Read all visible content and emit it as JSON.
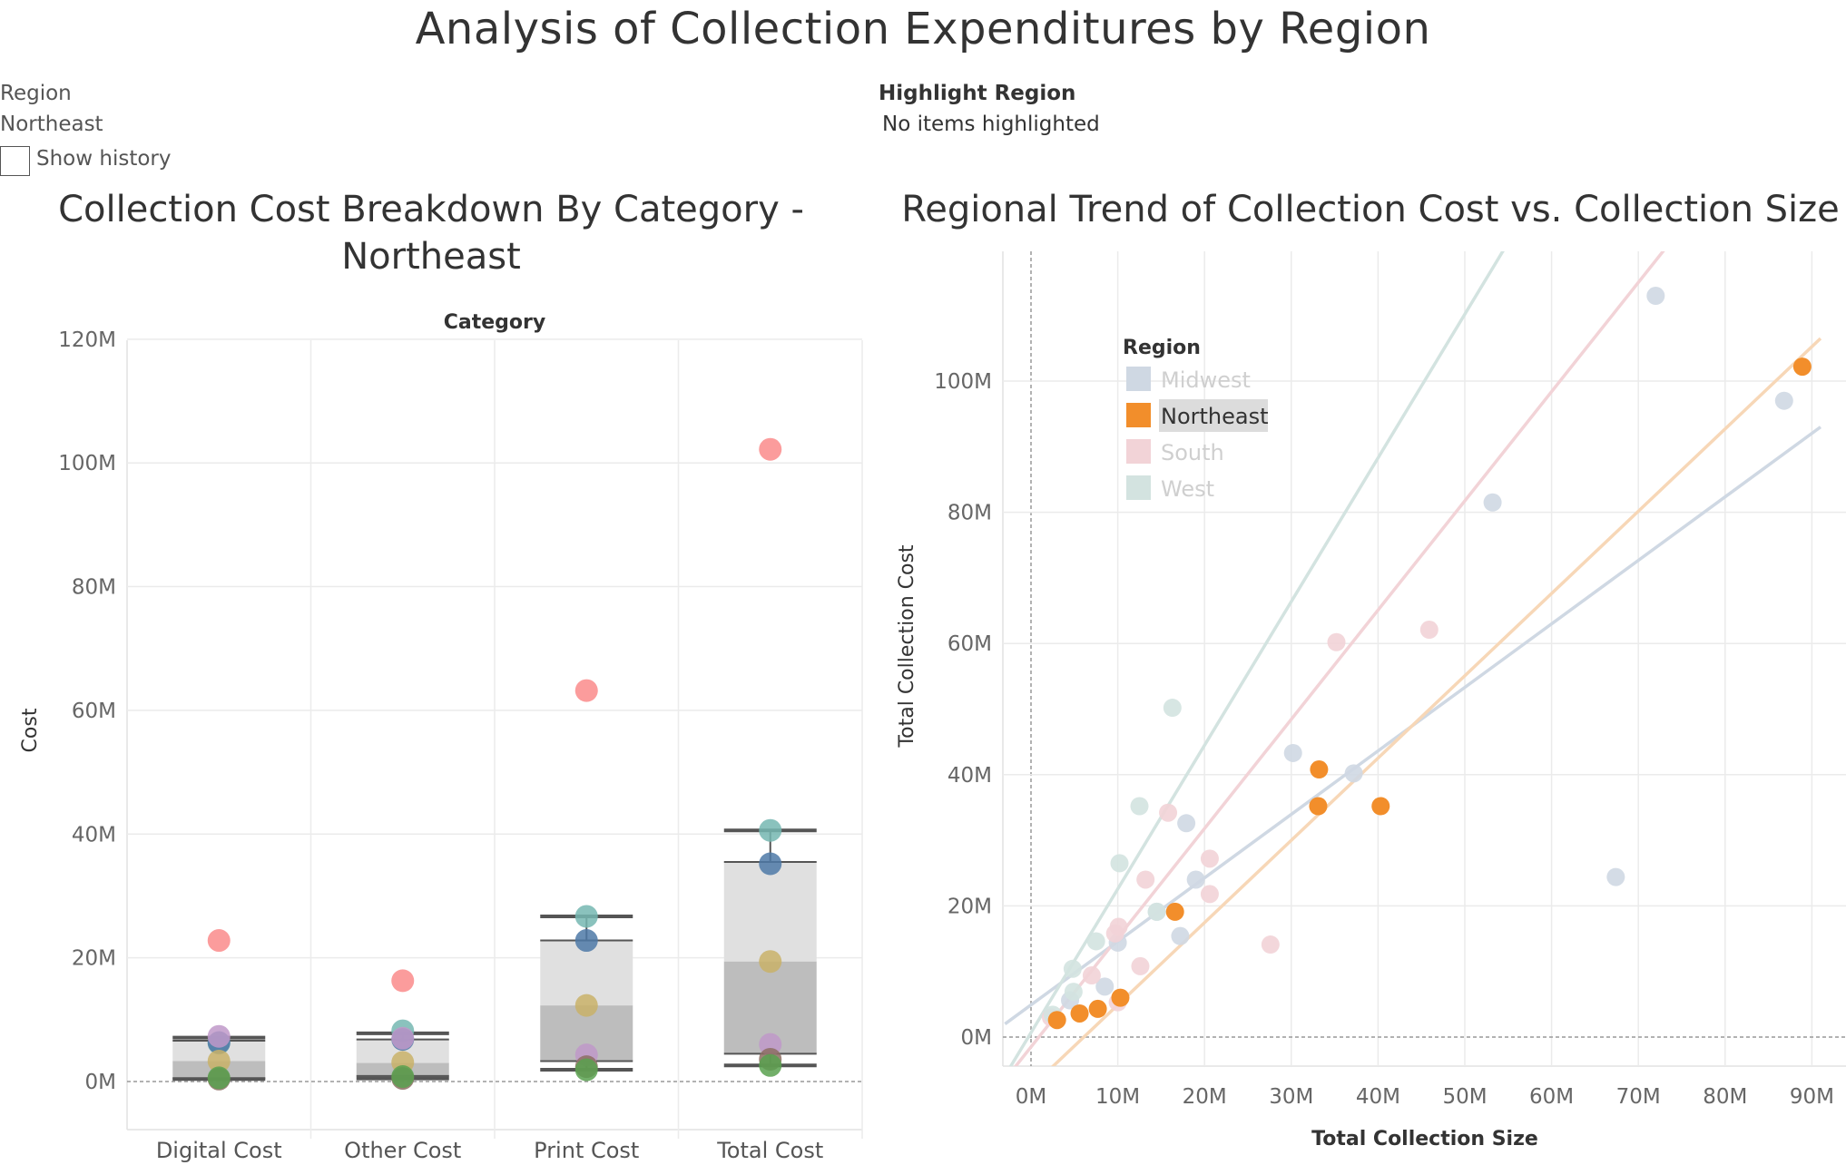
{
  "page": {
    "title": "Analysis of Collection Expenditures by Region"
  },
  "filters": {
    "region_label": "Region",
    "region_value": "Northeast",
    "show_history_label": "Show history",
    "show_history_checked": false,
    "highlight_title": "Highlight Region",
    "highlight_value": "No items highlighted"
  },
  "chart_data": [
    {
      "type": "scatter",
      "title": "Collection Cost Breakdown By Category - Northeast",
      "column_header": "Category",
      "ylabel": "Cost",
      "categories": [
        "Digital Cost",
        "Other Cost",
        "Print Cost",
        "Total Cost"
      ],
      "ylim": [
        -8,
        120
      ],
      "yticks": [
        0,
        20,
        40,
        60,
        80,
        100,
        120
      ],
      "ytick_labels": [
        "0M",
        "20M",
        "40M",
        "60M",
        "80M",
        "100M",
        "120M"
      ],
      "grid": true,
      "box_plots": [
        {
          "category": "Digital Cost",
          "whisker_low": 0.4,
          "q1": 0.5,
          "median": 3.3,
          "q3": 6.6,
          "whisker_high": 7.1
        },
        {
          "category": "Other Cost",
          "whisker_low": 0.5,
          "q1": 0.9,
          "median": 3.0,
          "q3": 6.8,
          "whisker_high": 7.8
        },
        {
          "category": "Print Cost",
          "whisker_low": 1.9,
          "q1": 3.3,
          "median": 12.3,
          "q3": 22.8,
          "whisker_high": 26.7
        },
        {
          "category": "Total Cost",
          "whisker_low": 2.6,
          "q1": 4.5,
          "median": 19.4,
          "q3": 35.5,
          "whisker_high": 40.6
        }
      ],
      "series": [
        {
          "color": "#fa8b8b",
          "values": [
            22.8,
            16.3,
            63.2,
            102.2
          ]
        },
        {
          "color": "#76b7b2",
          "values": [
            6.2,
            8.2,
            26.7,
            40.6
          ]
        },
        {
          "color": "#4e79a7",
          "values": [
            6.3,
            6.8,
            22.8,
            35.2
          ]
        },
        {
          "color": "#c9b268",
          "values": [
            3.3,
            3.1,
            12.3,
            19.4
          ]
        },
        {
          "color": "#bf99c9",
          "values": [
            7.3,
            7.0,
            4.3,
            6.0
          ]
        },
        {
          "color": "#8c6d62",
          "values": [
            0.4,
            0.5,
            2.4,
            3.6
          ]
        },
        {
          "color": "#59a14f",
          "values": [
            0.6,
            0.8,
            1.9,
            2.6
          ]
        }
      ]
    },
    {
      "type": "scatter",
      "title": "Regional Trend of Collection Cost vs. Collection Size",
      "xlabel": "Total Collection Size",
      "ylabel": "Total Collection Cost",
      "xlim": [
        -3,
        91
      ],
      "ylim": [
        -5,
        120
      ],
      "xticks": [
        0,
        10,
        20,
        30,
        40,
        50,
        60,
        70,
        80,
        90
      ],
      "xtick_labels": [
        "0M",
        "10M",
        "20M",
        "30M",
        "40M",
        "50M",
        "60M",
        "70M",
        "80M",
        "90M"
      ],
      "yticks": [
        0,
        20,
        40,
        60,
        80,
        100
      ],
      "ytick_labels": [
        "0M",
        "20M",
        "40M",
        "60M",
        "80M",
        "100M"
      ],
      "grid": true,
      "legend": {
        "title": "Region",
        "position": "top-left",
        "highlighted": "Northeast",
        "items": [
          {
            "label": "Midwest",
            "color": "#cfd8e3"
          },
          {
            "label": "Northeast",
            "color": "#f28e2b"
          },
          {
            "label": "South",
            "color": "#f2d3d7"
          },
          {
            "label": "West",
            "color": "#d3e3e0"
          }
        ]
      },
      "series": [
        {
          "name": "Midwest",
          "color": "#cfd8e3",
          "points": [
            [
              72,
              113
            ],
            [
              53.2,
              81.5
            ],
            [
              86.8,
              97
            ],
            [
              30.2,
              43.3
            ],
            [
              37.2,
              40.2
            ],
            [
              17.9,
              32.6
            ],
            [
              67.4,
              24.4
            ],
            [
              19,
              24
            ],
            [
              10,
              14.4
            ],
            [
              17.2,
              15.4
            ],
            [
              4.5,
              5.6
            ],
            [
              8.5,
              7.7
            ],
            [
              14.5,
              19.1
            ]
          ]
        },
        {
          "name": "Northeast",
          "color": "#f28e2b",
          "points": [
            [
              88.9,
              102.2
            ],
            [
              33.2,
              40.8
            ],
            [
              33.1,
              35.2
            ],
            [
              40.3,
              35.2
            ],
            [
              16.6,
              19.1
            ],
            [
              10.3,
              6
            ],
            [
              7.7,
              4.3
            ],
            [
              5.6,
              3.6
            ],
            [
              3,
              2.6
            ]
          ]
        },
        {
          "name": "South",
          "color": "#f2d3d7",
          "points": [
            [
              35.2,
              60.2
            ],
            [
              45.9,
              62.1
            ],
            [
              15.8,
              34.2
            ],
            [
              20.6,
              27.2
            ],
            [
              13.2,
              24
            ],
            [
              20.6,
              21.8
            ],
            [
              27.6,
              14.1
            ],
            [
              10.1,
              16.8
            ],
            [
              9.7,
              15.8
            ],
            [
              12.6,
              10.8
            ],
            [
              7,
              9.4
            ],
            [
              10,
              5.3
            ],
            [
              2.3,
              3
            ]
          ]
        },
        {
          "name": "West",
          "color": "#d3e3e0",
          "points": [
            [
              16.3,
              50.2
            ],
            [
              12.5,
              35.2
            ],
            [
              10.2,
              26.5
            ],
            [
              14.5,
              19.1
            ],
            [
              7.5,
              14.6
            ],
            [
              4.8,
              10.4
            ],
            [
              4.9,
              6.9
            ],
            [
              2.5,
              3.4
            ]
          ]
        }
      ],
      "trend_lines": [
        {
          "name": "Midwest",
          "color": "#cfd8e3",
          "from": [
            -3,
            2.0
          ],
          "to": [
            91,
            93.0
          ]
        },
        {
          "name": "Northeast",
          "color": "#f7d7b7",
          "from": [
            -3,
            -11.4
          ],
          "to": [
            91,
            106.5
          ]
        },
        {
          "name": "South",
          "color": "#f2d3d7",
          "from": [
            -3,
            -6.5
          ],
          "to": [
            91,
            150
          ]
        },
        {
          "name": "West",
          "color": "#d3e3e0",
          "from": [
            -3,
            -5.9
          ],
          "to": [
            91,
            200
          ]
        }
      ]
    }
  ]
}
